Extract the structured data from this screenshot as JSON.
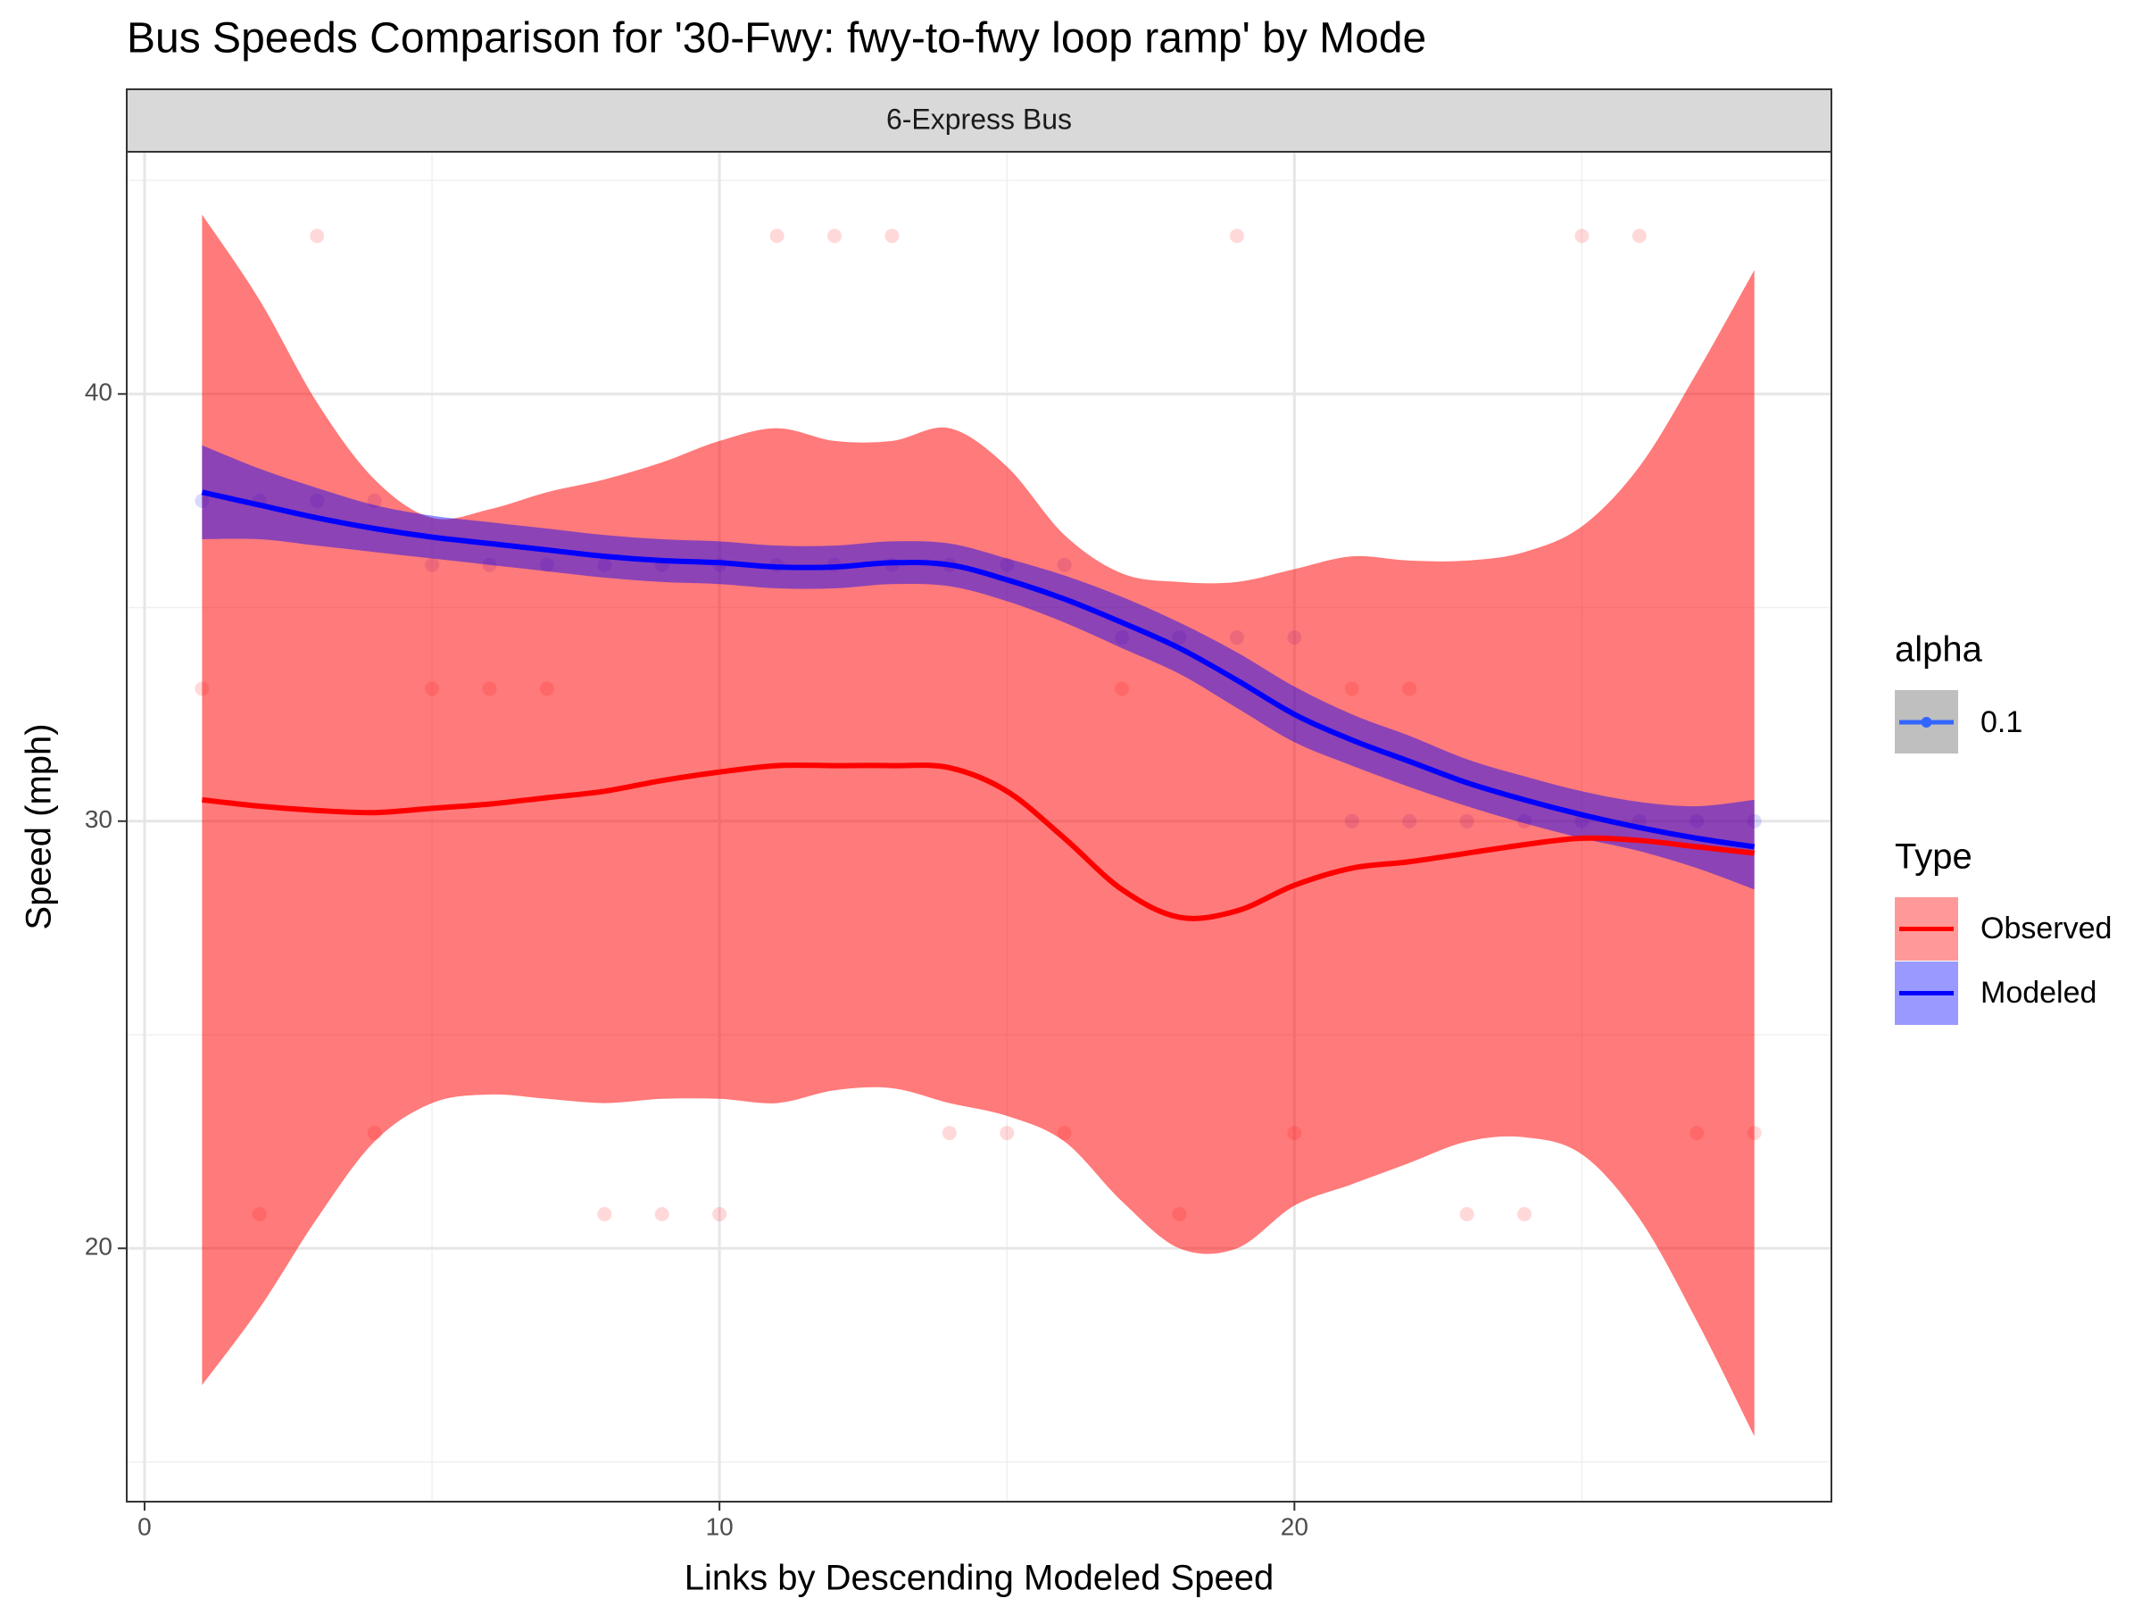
{
  "chart_data": {
    "type": "scatter",
    "title": "Bus Speeds Comparison for '30-Fwy: fwy-to-fwy loop ramp' by Mode",
    "facet_label": "6-Express Bus",
    "x_label": "Links by Descending Modeled Speed",
    "y_label": "Speed (mph)",
    "xlim": [
      -0.31,
      29.34
    ],
    "ylim": [
      14.07,
      45.67
    ],
    "xticks": [
      0,
      10,
      20
    ],
    "yticks": [
      20,
      30,
      40
    ],
    "minor_xticks": [
      5,
      15,
      25
    ],
    "minor_yticks": [
      15,
      25,
      35,
      45
    ],
    "grid": true,
    "point_alpha": 0.1,
    "alpha_legend": {
      "title": "alpha",
      "labels": [
        "0.1"
      ],
      "color": "#3366ff"
    },
    "legend_title": "Type",
    "legend_position": "right",
    "series": [
      {
        "name": "Observed",
        "color": "#ff0000",
        "x": [
          1,
          2,
          3,
          4,
          5,
          6,
          7,
          8,
          9,
          10,
          11,
          12,
          13,
          14,
          15,
          16,
          17,
          18,
          19,
          20,
          21,
          22,
          23,
          24,
          25,
          26,
          27,
          28
        ],
        "values": [
          33.1,
          20.8,
          43.7,
          22.7,
          33.1,
          33.1,
          33.1,
          20.8,
          20.8,
          20.8,
          43.7,
          43.7,
          43.7,
          22.7,
          22.7,
          22.7,
          33.1,
          20.8,
          43.7,
          22.7,
          33.1,
          33.1,
          20.8,
          20.8,
          43.7,
          43.7,
          22.7,
          22.7
        ],
        "fit": [
          30.5,
          30.35,
          30.25,
          30.2,
          30.3,
          30.4,
          30.55,
          30.7,
          30.95,
          31.15,
          31.3,
          31.3,
          31.3,
          31.25,
          30.7,
          29.6,
          28.4,
          27.75,
          27.9,
          28.5,
          28.9,
          29.05,
          29.25,
          29.45,
          29.6,
          29.55,
          29.4,
          29.25
        ],
        "lower": [
          16.8,
          18.6,
          20.7,
          22.5,
          23.4,
          23.6,
          23.5,
          23.4,
          23.5,
          23.5,
          23.4,
          23.7,
          23.75,
          23.4,
          23.1,
          22.5,
          21.1,
          20,
          20,
          21,
          21.5,
          22,
          22.5,
          22.6,
          22.2,
          20.7,
          18.3,
          15.6
        ],
        "upper": [
          44.2,
          42.2,
          39.8,
          38,
          37.1,
          37.3,
          37.7,
          38,
          38.4,
          38.9,
          39.2,
          38.9,
          38.9,
          39.2,
          38.3,
          36.7,
          35.8,
          35.6,
          35.6,
          35.9,
          36.2,
          36.1,
          36.1,
          36.3,
          36.9,
          38.3,
          40.5,
          42.9
        ]
      },
      {
        "name": "Modeled",
        "color": "#0000ff",
        "x": [
          1,
          2,
          3,
          4,
          5,
          6,
          7,
          8,
          9,
          10,
          11,
          12,
          13,
          14,
          15,
          16,
          17,
          18,
          19,
          20,
          21,
          22,
          23,
          24,
          25,
          26,
          27,
          28
        ],
        "values": [
          37.5,
          37.5,
          37.5,
          37.5,
          36,
          36,
          36,
          36,
          36,
          36,
          36,
          36,
          36,
          36,
          36,
          36,
          34.3,
          34.3,
          34.3,
          34.3,
          30,
          30,
          30,
          30,
          30,
          30,
          30,
          30
        ],
        "fit": [
          37.7,
          37.4,
          37.1,
          36.85,
          36.65,
          36.5,
          36.35,
          36.2,
          36.1,
          36.05,
          35.95,
          35.95,
          36.05,
          36,
          35.65,
          35.2,
          34.65,
          34.05,
          33.3,
          32.5,
          31.9,
          31.4,
          30.9,
          30.5,
          30.15,
          29.85,
          29.6,
          29.4
        ],
        "lower": [
          36.6,
          36.6,
          36.45,
          36.3,
          36.15,
          36,
          35.85,
          35.7,
          35.6,
          35.55,
          35.45,
          35.45,
          35.55,
          35.5,
          35.15,
          34.65,
          34.05,
          33.45,
          32.65,
          31.85,
          31.3,
          30.8,
          30.35,
          29.95,
          29.6,
          29.3,
          28.9,
          28.4
        ],
        "upper": [
          38.8,
          38.25,
          37.8,
          37.4,
          37.15,
          37,
          36.85,
          36.7,
          36.6,
          36.55,
          36.45,
          36.45,
          36.55,
          36.5,
          36.15,
          35.75,
          35.25,
          34.65,
          33.95,
          33.15,
          32.5,
          32,
          31.45,
          31.05,
          30.7,
          30.45,
          30.35,
          30.5
        ]
      }
    ]
  }
}
